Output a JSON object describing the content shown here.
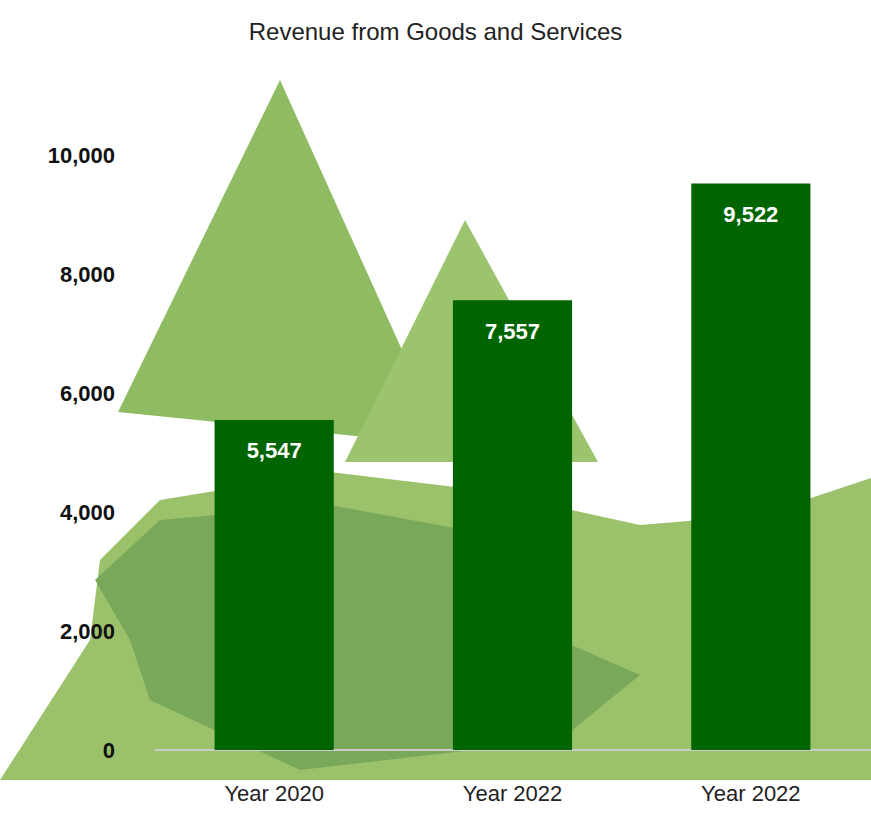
{
  "chart_data": {
    "type": "bar",
    "title": "Revenue from Goods and Services",
    "categories": [
      "Year 2020",
      "Year 2022",
      "Year 2022"
    ],
    "values": [
      5547,
      7557,
      9522
    ],
    "value_labels": [
      "5,547",
      "7,557",
      "9,522"
    ],
    "color": "#006400",
    "ylim": [
      0,
      10000
    ],
    "yticks": [
      0,
      {
        "value": 2000,
        "label": "2,000"
      },
      {
        "value": 4000,
        "label": "4,000"
      },
      {
        "value": 6000,
        "label": "6,000"
      },
      {
        "value": 8000,
        "label": "8,000"
      },
      {
        "value": 10000,
        "label": "10,000"
      }
    ],
    "grid": false,
    "data_labels": true
  }
}
